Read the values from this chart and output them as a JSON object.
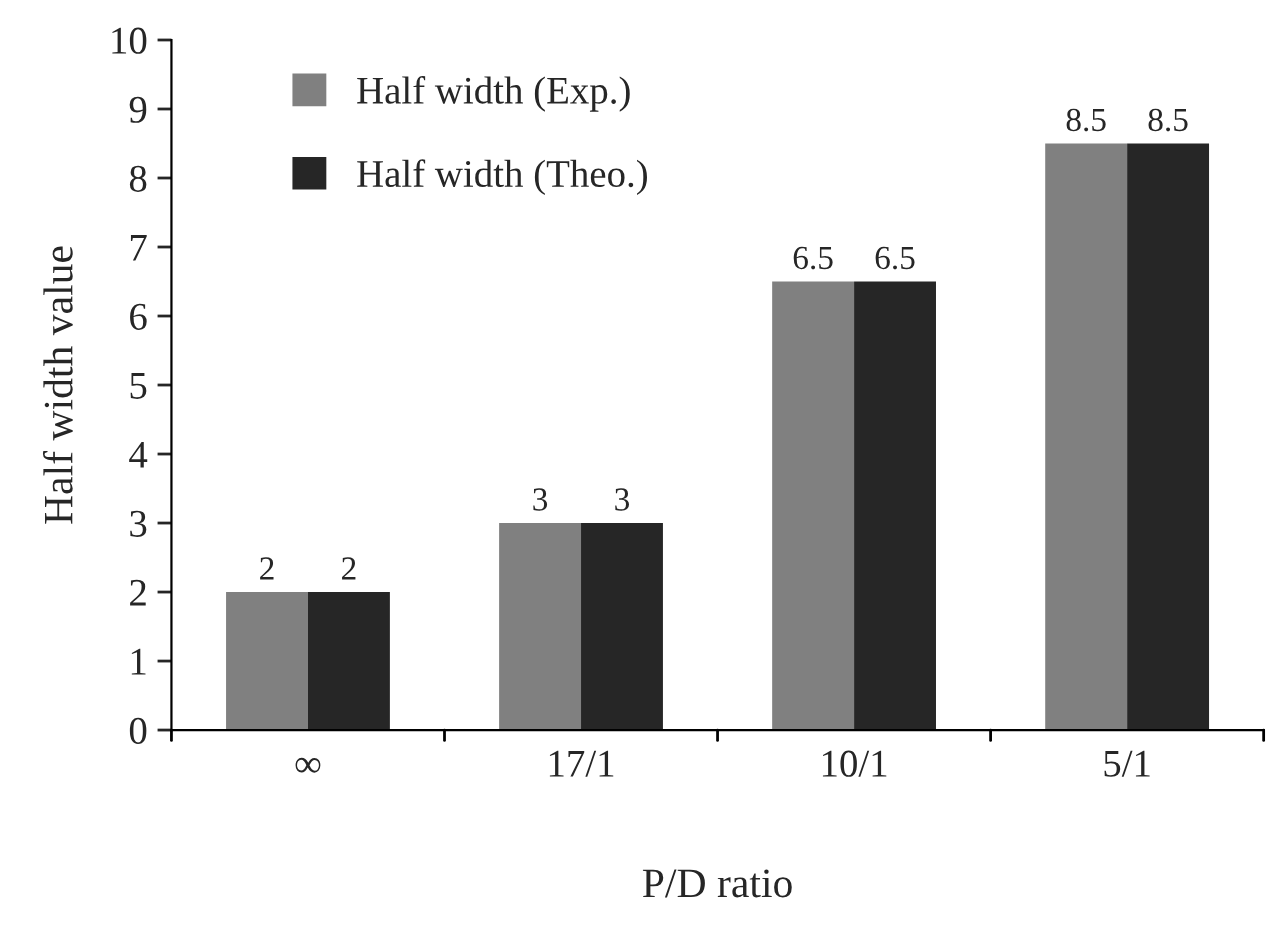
{
  "chart_data": {
    "type": "bar",
    "xlabel": "P/D ratio",
    "ylabel": "Half width value",
    "categories": [
      "∞",
      "17/1",
      "10/1",
      "5/1"
    ],
    "series": [
      {
        "name": "Half width (Exp.)",
        "color": "#808080",
        "values": [
          2,
          3,
          6.5,
          8.5
        ]
      },
      {
        "name": "Half width (Theo.)",
        "color": "#262626",
        "values": [
          2,
          3,
          6.5,
          8.5
        ]
      }
    ],
    "ylim": [
      0,
      10
    ],
    "yticks": [
      0,
      1,
      2,
      3,
      4,
      5,
      6,
      7,
      8,
      9,
      10
    ],
    "data_labels": true,
    "legend": "top left",
    "grid": false
  }
}
